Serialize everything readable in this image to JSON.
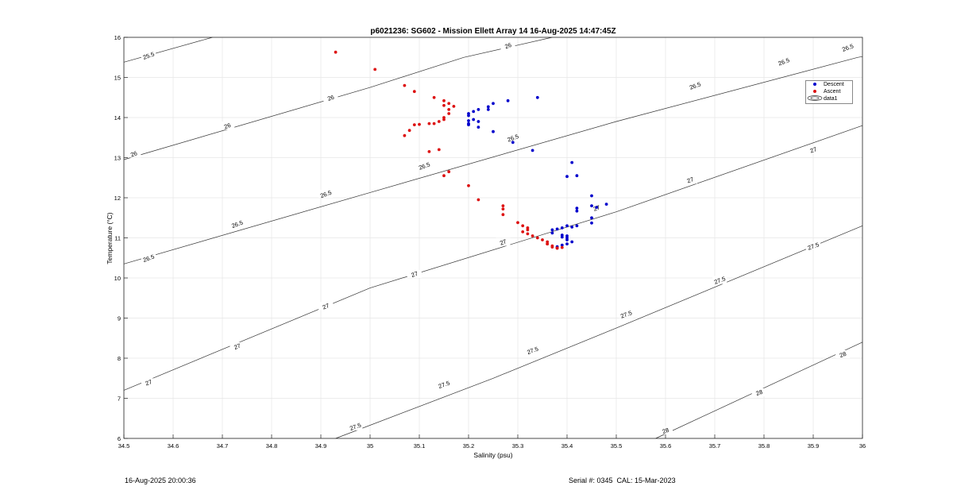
{
  "chart_data": {
    "type": "scatter",
    "title": "p6021236: SG602 - Mission Ellett Array 14 16-Aug-2025 14:47:45Z",
    "xlabel": "Salinity (psu)",
    "ylabel": "Temperature (°C)",
    "xlim": [
      34.5,
      36
    ],
    "ylim": [
      6,
      16
    ],
    "x_ticks": [
      "34.5",
      "34.6",
      "34.7",
      "34.8",
      "34.9",
      "35",
      "35.1",
      "35.2",
      "35.3",
      "35.4",
      "35.5",
      "35.6",
      "35.7",
      "35.8",
      "35.9",
      "36"
    ],
    "y_ticks": [
      "6",
      "7",
      "8",
      "9",
      "10",
      "11",
      "12",
      "13",
      "14",
      "15",
      "16"
    ],
    "grid": true,
    "legend_position": "top-right",
    "legend": [
      "Descent",
      "Ascent",
      "data1"
    ],
    "density_contours": {
      "levels": [
        {
          "level": "25.5",
          "points": [
            [
              34.5,
              15.38
            ],
            [
              34.68,
              16.0
            ]
          ],
          "labels": [
            [
              34.55,
              15.55
            ]
          ]
        },
        {
          "level": "26",
          "points": [
            [
              34.5,
              12.95
            ],
            [
              35.0,
              14.75
            ],
            [
              35.19,
              15.5
            ],
            [
              35.37,
              16.0
            ]
          ],
          "labels": [
            [
              34.52,
              13.1
            ],
            [
              34.71,
              13.8
            ],
            [
              34.92,
              14.5
            ],
            [
              35.28,
              15.8
            ]
          ]
        },
        {
          "level": "26.5",
          "points": [
            [
              34.5,
              10.35
            ],
            [
              35.0,
              12.13
            ],
            [
              35.5,
              13.9
            ],
            [
              35.99,
              15.5
            ],
            [
              36.0,
              15.52
            ]
          ],
          "labels": [
            [
              34.55,
              10.5
            ],
            [
              34.73,
              11.35
            ],
            [
              34.91,
              12.1
            ],
            [
              35.11,
              12.8
            ],
            [
              35.29,
              13.5
            ],
            [
              35.66,
              14.8
            ],
            [
              35.84,
              15.4
            ],
            [
              35.97,
              15.75
            ]
          ]
        },
        {
          "level": "27",
          "points": [
            [
              34.5,
              7.2
            ],
            [
              35.0,
              9.75
            ],
            [
              35.5,
              11.65
            ],
            [
              36.0,
              13.8
            ]
          ],
          "labels": [
            [
              34.55,
              7.4
            ],
            [
              34.73,
              8.3
            ],
            [
              34.91,
              9.3
            ],
            [
              35.09,
              10.1
            ],
            [
              35.27,
              10.9
            ],
            [
              35.46,
              11.75
            ],
            [
              35.65,
              12.45
            ],
            [
              35.9,
              13.2
            ]
          ]
        },
        {
          "level": "27.5",
          "points": [
            [
              34.93,
              6.0
            ],
            [
              35.25,
              7.5
            ],
            [
              35.5,
              8.75
            ],
            [
              36.0,
              11.3
            ]
          ],
          "labels": [
            [
              34.97,
              6.3
            ],
            [
              35.15,
              7.35
            ],
            [
              35.33,
              8.2
            ],
            [
              35.52,
              9.1
            ],
            [
              35.71,
              9.95
            ],
            [
              35.9,
              10.8
            ]
          ]
        },
        {
          "level": "28",
          "points": [
            [
              35.58,
              6.0
            ],
            [
              36.0,
              8.4
            ]
          ],
          "labels": [
            [
              35.6,
              6.2
            ],
            [
              35.79,
              7.15
            ],
            [
              35.96,
              8.1
            ]
          ]
        }
      ]
    },
    "series": [
      {
        "name": "Descent",
        "color": "#0000cc",
        "points": [
          [
            35.2,
            13.82
          ],
          [
            35.2,
            13.85
          ],
          [
            35.2,
            14.05
          ],
          [
            35.2,
            14.1
          ],
          [
            35.21,
            14.15
          ],
          [
            35.2,
            13.92
          ],
          [
            35.21,
            13.95
          ],
          [
            35.22,
            14.2
          ],
          [
            35.22,
            13.9
          ],
          [
            35.22,
            13.76
          ],
          [
            35.24,
            14.2
          ],
          [
            35.24,
            14.27
          ],
          [
            35.25,
            14.35
          ],
          [
            35.25,
            13.65
          ],
          [
            35.28,
            14.42
          ],
          [
            35.29,
            13.38
          ],
          [
            35.33,
            13.18
          ],
          [
            35.34,
            14.5
          ],
          [
            35.41,
            12.88
          ],
          [
            35.4,
            12.53
          ],
          [
            35.42,
            12.55
          ],
          [
            35.45,
            12.05
          ],
          [
            35.45,
            11.8
          ],
          [
            35.42,
            11.74
          ],
          [
            35.42,
            11.67
          ],
          [
            35.45,
            11.5
          ],
          [
            35.45,
            11.37
          ],
          [
            35.48,
            11.84
          ],
          [
            35.46,
            11.76
          ],
          [
            35.42,
            11.3
          ],
          [
            35.41,
            11.27
          ],
          [
            35.4,
            11.3
          ],
          [
            35.39,
            11.25
          ],
          [
            35.38,
            11.22
          ],
          [
            35.37,
            11.2
          ],
          [
            35.37,
            11.12
          ],
          [
            35.39,
            11.07
          ],
          [
            35.39,
            11.02
          ],
          [
            35.4,
            11.05
          ],
          [
            35.4,
            11.0
          ],
          [
            35.4,
            10.95
          ],
          [
            35.41,
            10.9
          ],
          [
            35.4,
            10.85
          ],
          [
            35.39,
            10.82
          ],
          [
            35.38,
            10.78
          ],
          [
            35.38,
            10.76
          ]
        ]
      },
      {
        "name": "Ascent",
        "color": "#dd1111",
        "points": [
          [
            34.93,
            15.63
          ],
          [
            35.01,
            15.2
          ],
          [
            35.07,
            14.8
          ],
          [
            35.09,
            14.65
          ],
          [
            35.13,
            14.5
          ],
          [
            35.15,
            14.42
          ],
          [
            35.15,
            14.3
          ],
          [
            35.16,
            14.35
          ],
          [
            35.16,
            14.2
          ],
          [
            35.17,
            14.28
          ],
          [
            35.16,
            14.1
          ],
          [
            35.15,
            14.0
          ],
          [
            35.15,
            13.95
          ],
          [
            35.14,
            13.9
          ],
          [
            35.13,
            13.85
          ],
          [
            35.12,
            13.85
          ],
          [
            35.1,
            13.83
          ],
          [
            35.09,
            13.82
          ],
          [
            35.08,
            13.68
          ],
          [
            35.07,
            13.55
          ],
          [
            35.12,
            13.15
          ],
          [
            35.14,
            13.2
          ],
          [
            35.16,
            12.65
          ],
          [
            35.15,
            12.55
          ],
          [
            35.2,
            12.3
          ],
          [
            35.22,
            11.95
          ],
          [
            35.27,
            11.8
          ],
          [
            35.27,
            11.72
          ],
          [
            35.27,
            11.58
          ],
          [
            35.3,
            11.38
          ],
          [
            35.31,
            11.3
          ],
          [
            35.32,
            11.25
          ],
          [
            35.32,
            11.2
          ],
          [
            35.31,
            11.15
          ],
          [
            35.32,
            11.1
          ],
          [
            35.33,
            11.05
          ],
          [
            35.34,
            11.0
          ],
          [
            35.35,
            10.95
          ],
          [
            35.36,
            10.9
          ],
          [
            35.36,
            10.85
          ],
          [
            35.37,
            10.8
          ],
          [
            35.37,
            10.77
          ],
          [
            35.38,
            10.75
          ],
          [
            35.38,
            10.74
          ],
          [
            35.39,
            10.76
          ],
          [
            35.36,
            10.85
          ]
        ]
      }
    ]
  },
  "footer": {
    "timestamp": "16-Aug-2025 20:00:36",
    "serial": "Serial #: 0345  CAL: 15-Mar-2023"
  }
}
